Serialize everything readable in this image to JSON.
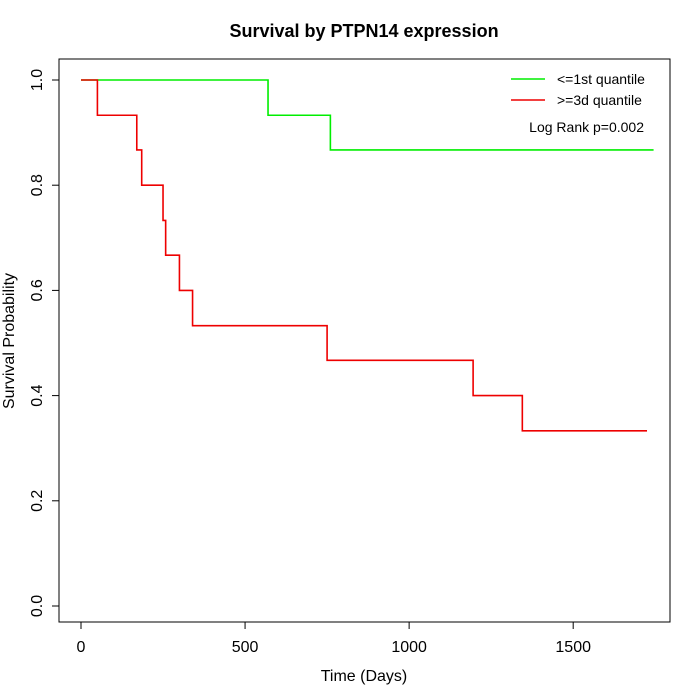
{
  "chart_data": {
    "type": "line",
    "title": "Survival by PTPN14 expression",
    "xlabel": "Time (Days)",
    "ylabel": "Survival Probability",
    "xlim": [
      0,
      1800
    ],
    "ylim": [
      0,
      1.0
    ],
    "x_ticks": [
      0,
      500,
      1000,
      1500
    ],
    "x_tick_labels": [
      "0",
      "500",
      "1000",
      "1500"
    ],
    "y_ticks": [
      0.0,
      0.2,
      0.4,
      0.6,
      0.8,
      1.0
    ],
    "y_tick_labels": [
      "0.0",
      "0.2",
      "0.4",
      "0.6",
      "0.8",
      "1.0"
    ],
    "grid": false,
    "legend_position": "top-right",
    "annotation": "Log Rank p=0.002",
    "series": [
      {
        "name": "<=1st quantile",
        "color": "#00ee00",
        "step": true,
        "x": [
          0,
          570,
          760,
          1745
        ],
        "y": [
          1.0,
          0.933,
          0.867,
          0.867
        ]
      },
      {
        "name": ">=3d quantile",
        "color": "#ee0000",
        "step": true,
        "x": [
          0,
          50,
          170,
          185,
          250,
          258,
          300,
          340,
          750,
          1195,
          1345,
          1725
        ],
        "y": [
          1.0,
          0.933,
          0.867,
          0.8,
          0.733,
          0.667,
          0.6,
          0.533,
          0.467,
          0.4,
          0.333,
          0.333
        ]
      }
    ]
  }
}
